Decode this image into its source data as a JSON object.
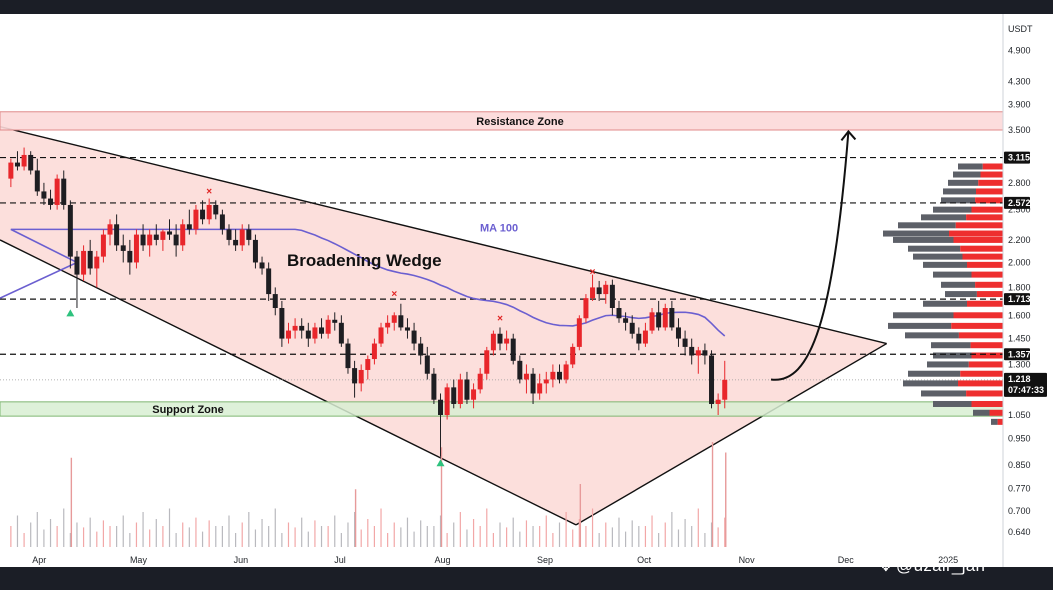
{
  "chart_data": {
    "type": "candlestick",
    "currency_label": "USDT",
    "y_scale": "log",
    "ylim": [
      0.61,
      5.5
    ],
    "y_ticks": [
      "4.900",
      "4.300",
      "3.900",
      "3.500",
      "2.800",
      "2.500",
      "2.200",
      "2.000",
      "1.800",
      "1.600",
      "1.450",
      "1.300",
      "1.050",
      "0.950",
      "0.850",
      "0.770",
      "0.700",
      "0.640"
    ],
    "months": [
      "Apr",
      "May",
      "Jun",
      "Jul",
      "Aug",
      "Sep",
      "Oct",
      "Nov",
      "Dec",
      "2025"
    ],
    "title": "Broadening Wedge",
    "ma_label": "MA 100",
    "resistance_zone": {
      "label": "Resistance Zone",
      "low": 3.5,
      "high": 3.78
    },
    "support_zone": {
      "label": "Support Zone",
      "low": 1.045,
      "high": 1.11
    },
    "key_levels": [
      {
        "value": 3.115,
        "label": "3.115"
      },
      {
        "value": 2.572,
        "label": "2.572"
      },
      {
        "value": 1.713,
        "label": "1.713"
      },
      {
        "value": 1.357,
        "label": "1.357"
      }
    ],
    "current_price": {
      "value": 1.218,
      "label": "1.218",
      "countdown": "07:47:33"
    },
    "wedge": {
      "upper": [
        [
          "Mar 25",
          3.55
        ],
        [
          "Dec 15",
          1.42
        ]
      ],
      "lower": [
        [
          "Mar 25",
          2.2
        ],
        [
          "Sep 12",
          0.66
        ]
      ],
      "apex_line": [
        [
          "Sep 12",
          0.66
        ],
        [
          "Dec 15",
          1.42
        ]
      ]
    },
    "projection": {
      "from": [
        "Nov 10",
        1.22
      ],
      "to": [
        "Dec 1",
        3.45
      ]
    },
    "candles": [
      {
        "t": "Mar 25",
        "o": 2.85,
        "h": 3.1,
        "l": 2.75,
        "c": 3.05
      },
      {
        "t": "Mar 27",
        "o": 3.05,
        "h": 3.2,
        "l": 2.95,
        "c": 3.0
      },
      {
        "t": "Mar 29",
        "o": 3.0,
        "h": 3.25,
        "l": 2.95,
        "c": 3.15
      },
      {
        "t": "Mar 31",
        "o": 3.15,
        "h": 3.2,
        "l": 2.9,
        "c": 2.95
      },
      {
        "t": "Apr 2",
        "o": 2.95,
        "h": 3.1,
        "l": 2.65,
        "c": 2.7
      },
      {
        "t": "Apr 4",
        "o": 2.7,
        "h": 2.8,
        "l": 2.55,
        "c": 2.62
      },
      {
        "t": "Apr 6",
        "o": 2.62,
        "h": 2.72,
        "l": 2.5,
        "c": 2.55
      },
      {
        "t": "Apr 8",
        "o": 2.55,
        "h": 2.9,
        "l": 2.5,
        "c": 2.85
      },
      {
        "t": "Apr 10",
        "o": 2.85,
        "h": 2.95,
        "l": 2.5,
        "c": 2.55
      },
      {
        "t": "Apr 12",
        "o": 2.55,
        "h": 2.6,
        "l": 1.95,
        "c": 2.05
      },
      {
        "t": "Apr 14",
        "o": 2.05,
        "h": 2.1,
        "l": 1.65,
        "c": 1.9
      },
      {
        "t": "Apr 16",
        "o": 1.9,
        "h": 2.15,
        "l": 1.85,
        "c": 2.1
      },
      {
        "t": "Apr 18",
        "o": 2.1,
        "h": 2.2,
        "l": 1.9,
        "c": 1.95
      },
      {
        "t": "Apr 20",
        "o": 1.95,
        "h": 2.1,
        "l": 1.8,
        "c": 2.05
      },
      {
        "t": "Apr 22",
        "o": 2.05,
        "h": 2.3,
        "l": 2.0,
        "c": 2.25
      },
      {
        "t": "Apr 24",
        "o": 2.25,
        "h": 2.4,
        "l": 2.15,
        "c": 2.35
      },
      {
        "t": "Apr 26",
        "o": 2.35,
        "h": 2.45,
        "l": 2.1,
        "c": 2.15
      },
      {
        "t": "Apr 28",
        "o": 2.15,
        "h": 2.25,
        "l": 2.0,
        "c": 2.1
      },
      {
        "t": "Apr 30",
        "o": 2.1,
        "h": 2.2,
        "l": 1.9,
        "c": 2.0
      },
      {
        "t": "May 2",
        "o": 2.0,
        "h": 2.3,
        "l": 1.95,
        "c": 2.25
      },
      {
        "t": "May 4",
        "o": 2.25,
        "h": 2.35,
        "l": 2.1,
        "c": 2.15
      },
      {
        "t": "May 6",
        "o": 2.15,
        "h": 2.3,
        "l": 2.05,
        "c": 2.25
      },
      {
        "t": "May 8",
        "o": 2.25,
        "h": 2.35,
        "l": 2.15,
        "c": 2.2
      },
      {
        "t": "May 10",
        "o": 2.2,
        "h": 2.3,
        "l": 2.1,
        "c": 2.28
      },
      {
        "t": "May 12",
        "o": 2.28,
        "h": 2.4,
        "l": 2.2,
        "c": 2.25
      },
      {
        "t": "May 14",
        "o": 2.25,
        "h": 2.35,
        "l": 2.05,
        "c": 2.15
      },
      {
        "t": "May 16",
        "o": 2.15,
        "h": 2.4,
        "l": 2.1,
        "c": 2.35
      },
      {
        "t": "May 18",
        "o": 2.35,
        "h": 2.5,
        "l": 2.25,
        "c": 2.3
      },
      {
        "t": "May 20",
        "o": 2.3,
        "h": 2.55,
        "l": 2.25,
        "c": 2.5
      },
      {
        "t": "May 22",
        "o": 2.5,
        "h": 2.6,
        "l": 2.35,
        "c": 2.4
      },
      {
        "t": "May 24",
        "o": 2.4,
        "h": 2.62,
        "l": 2.35,
        "c": 2.55
      },
      {
        "t": "May 26",
        "o": 2.55,
        "h": 2.6,
        "l": 2.4,
        "c": 2.45
      },
      {
        "t": "May 28",
        "o": 2.45,
        "h": 2.5,
        "l": 2.25,
        "c": 2.3
      },
      {
        "t": "May 30",
        "o": 2.3,
        "h": 2.35,
        "l": 2.15,
        "c": 2.2
      },
      {
        "t": "Jun 1",
        "o": 2.2,
        "h": 2.3,
        "l": 2.1,
        "c": 2.15
      },
      {
        "t": "Jun 3",
        "o": 2.15,
        "h": 2.35,
        "l": 2.1,
        "c": 2.3
      },
      {
        "t": "Jun 5",
        "o": 2.3,
        "h": 2.35,
        "l": 2.15,
        "c": 2.2
      },
      {
        "t": "Jun 7",
        "o": 2.2,
        "h": 2.25,
        "l": 1.95,
        "c": 2.0
      },
      {
        "t": "Jun 9",
        "o": 2.0,
        "h": 2.05,
        "l": 1.9,
        "c": 1.95
      },
      {
        "t": "Jun 11",
        "o": 1.95,
        "h": 2.0,
        "l": 1.7,
        "c": 1.75
      },
      {
        "t": "Jun 13",
        "o": 1.75,
        "h": 1.8,
        "l": 1.6,
        "c": 1.65
      },
      {
        "t": "Jun 15",
        "o": 1.65,
        "h": 1.7,
        "l": 1.4,
        "c": 1.45
      },
      {
        "t": "Jun 17",
        "o": 1.45,
        "h": 1.55,
        "l": 1.42,
        "c": 1.5
      },
      {
        "t": "Jun 19",
        "o": 1.5,
        "h": 1.58,
        "l": 1.45,
        "c": 1.53
      },
      {
        "t": "Jun 21",
        "o": 1.53,
        "h": 1.58,
        "l": 1.45,
        "c": 1.5
      },
      {
        "t": "Jun 23",
        "o": 1.5,
        "h": 1.55,
        "l": 1.4,
        "c": 1.45
      },
      {
        "t": "Jun 25",
        "o": 1.45,
        "h": 1.55,
        "l": 1.42,
        "c": 1.52
      },
      {
        "t": "Jun 27",
        "o": 1.52,
        "h": 1.58,
        "l": 1.45,
        "c": 1.48
      },
      {
        "t": "Jun 29",
        "o": 1.48,
        "h": 1.6,
        "l": 1.45,
        "c": 1.57
      },
      {
        "t": "Jul 1",
        "o": 1.57,
        "h": 1.62,
        "l": 1.5,
        "c": 1.55
      },
      {
        "t": "Jul 3",
        "o": 1.55,
        "h": 1.6,
        "l": 1.4,
        "c": 1.42
      },
      {
        "t": "Jul 5",
        "o": 1.42,
        "h": 1.45,
        "l": 1.25,
        "c": 1.28
      },
      {
        "t": "Jul 7",
        "o": 1.28,
        "h": 1.32,
        "l": 1.13,
        "c": 1.2
      },
      {
        "t": "Jul 9",
        "o": 1.2,
        "h": 1.3,
        "l": 1.16,
        "c": 1.27
      },
      {
        "t": "Jul 11",
        "o": 1.27,
        "h": 1.35,
        "l": 1.22,
        "c": 1.33
      },
      {
        "t": "Jul 13",
        "o": 1.33,
        "h": 1.45,
        "l": 1.3,
        "c": 1.42
      },
      {
        "t": "Jul 15",
        "o": 1.42,
        "h": 1.55,
        "l": 1.4,
        "c": 1.52
      },
      {
        "t": "Jul 17",
        "o": 1.52,
        "h": 1.6,
        "l": 1.48,
        "c": 1.55
      },
      {
        "t": "Jul 19",
        "o": 1.55,
        "h": 1.62,
        "l": 1.5,
        "c": 1.6
      },
      {
        "t": "Jul 21",
        "o": 1.6,
        "h": 1.68,
        "l": 1.5,
        "c": 1.52
      },
      {
        "t": "Jul 23",
        "o": 1.52,
        "h": 1.58,
        "l": 1.45,
        "c": 1.5
      },
      {
        "t": "Jul 25",
        "o": 1.5,
        "h": 1.55,
        "l": 1.38,
        "c": 1.42
      },
      {
        "t": "Jul 27",
        "o": 1.42,
        "h": 1.46,
        "l": 1.3,
        "c": 1.35
      },
      {
        "t": "Jul 29",
        "o": 1.35,
        "h": 1.4,
        "l": 1.22,
        "c": 1.25
      },
      {
        "t": "Jul 31",
        "o": 1.25,
        "h": 1.28,
        "l": 1.1,
        "c": 1.12
      },
      {
        "t": "Aug 2",
        "o": 1.12,
        "h": 1.15,
        "l": 0.88,
        "c": 1.05
      },
      {
        "t": "Aug 4",
        "o": 1.05,
        "h": 1.2,
        "l": 1.03,
        "c": 1.18
      },
      {
        "t": "Aug 6",
        "o": 1.18,
        "h": 1.22,
        "l": 1.08,
        "c": 1.1
      },
      {
        "t": "Aug 8",
        "o": 1.1,
        "h": 1.25,
        "l": 1.08,
        "c": 1.22
      },
      {
        "t": "Aug 10",
        "o": 1.22,
        "h": 1.26,
        "l": 1.1,
        "c": 1.12
      },
      {
        "t": "Aug 12",
        "o": 1.12,
        "h": 1.2,
        "l": 1.08,
        "c": 1.17
      },
      {
        "t": "Aug 14",
        "o": 1.17,
        "h": 1.28,
        "l": 1.15,
        "c": 1.25
      },
      {
        "t": "Aug 16",
        "o": 1.25,
        "h": 1.4,
        "l": 1.22,
        "c": 1.38
      },
      {
        "t": "Aug 18",
        "o": 1.38,
        "h": 1.5,
        "l": 1.35,
        "c": 1.48
      },
      {
        "t": "Aug 20",
        "o": 1.48,
        "h": 1.52,
        "l": 1.38,
        "c": 1.42
      },
      {
        "t": "Aug 22",
        "o": 1.42,
        "h": 1.5,
        "l": 1.38,
        "c": 1.45
      },
      {
        "t": "Aug 24",
        "o": 1.45,
        "h": 1.48,
        "l": 1.3,
        "c": 1.32
      },
      {
        "t": "Aug 26",
        "o": 1.32,
        "h": 1.35,
        "l": 1.2,
        "c": 1.22
      },
      {
        "t": "Aug 28",
        "o": 1.22,
        "h": 1.3,
        "l": 1.15,
        "c": 1.25
      },
      {
        "t": "Aug 30",
        "o": 1.25,
        "h": 1.28,
        "l": 1.1,
        "c": 1.15
      },
      {
        "t": "Sep 1",
        "o": 1.15,
        "h": 1.25,
        "l": 1.12,
        "c": 1.2
      },
      {
        "t": "Sep 3",
        "o": 1.2,
        "h": 1.26,
        "l": 1.15,
        "c": 1.22
      },
      {
        "t": "Sep 5",
        "o": 1.22,
        "h": 1.3,
        "l": 1.18,
        "c": 1.26
      },
      {
        "t": "Sep 7",
        "o": 1.26,
        "h": 1.3,
        "l": 1.2,
        "c": 1.22
      },
      {
        "t": "Sep 9",
        "o": 1.22,
        "h": 1.32,
        "l": 1.2,
        "c": 1.3
      },
      {
        "t": "Sep 11",
        "o": 1.3,
        "h": 1.42,
        "l": 1.28,
        "c": 1.4
      },
      {
        "t": "Sep 13",
        "o": 1.4,
        "h": 1.6,
        "l": 1.38,
        "c": 1.58
      },
      {
        "t": "Sep 15",
        "o": 1.58,
        "h": 1.75,
        "l": 1.55,
        "c": 1.72
      },
      {
        "t": "Sep 17",
        "o": 1.72,
        "h": 1.9,
        "l": 1.7,
        "c": 1.8
      },
      {
        "t": "Sep 19",
        "o": 1.8,
        "h": 1.85,
        "l": 1.7,
        "c": 1.75
      },
      {
        "t": "Sep 21",
        "o": 1.75,
        "h": 1.85,
        "l": 1.68,
        "c": 1.82
      },
      {
        "t": "Sep 23",
        "o": 1.82,
        "h": 1.86,
        "l": 1.6,
        "c": 1.65
      },
      {
        "t": "Sep 25",
        "o": 1.65,
        "h": 1.7,
        "l": 1.55,
        "c": 1.58
      },
      {
        "t": "Sep 27",
        "o": 1.58,
        "h": 1.62,
        "l": 1.5,
        "c": 1.55
      },
      {
        "t": "Sep 29",
        "o": 1.55,
        "h": 1.6,
        "l": 1.45,
        "c": 1.48
      },
      {
        "t": "Oct 1",
        "o": 1.48,
        "h": 1.52,
        "l": 1.38,
        "c": 1.42
      },
      {
        "t": "Oct 3",
        "o": 1.42,
        "h": 1.55,
        "l": 1.4,
        "c": 1.5
      },
      {
        "t": "Oct 5",
        "o": 1.5,
        "h": 1.65,
        "l": 1.48,
        "c": 1.62
      },
      {
        "t": "Oct 7",
        "o": 1.62,
        "h": 1.7,
        "l": 1.5,
        "c": 1.52
      },
      {
        "t": "Oct 9",
        "o": 1.52,
        "h": 1.68,
        "l": 1.5,
        "c": 1.65
      },
      {
        "t": "Oct 11",
        "o": 1.65,
        "h": 1.7,
        "l": 1.5,
        "c": 1.52
      },
      {
        "t": "Oct 13",
        "o": 1.52,
        "h": 1.58,
        "l": 1.4,
        "c": 1.45
      },
      {
        "t": "Oct 15",
        "o": 1.45,
        "h": 1.5,
        "l": 1.35,
        "c": 1.4
      },
      {
        "t": "Oct 17",
        "o": 1.4,
        "h": 1.45,
        "l": 1.3,
        "c": 1.35
      },
      {
        "t": "Oct 19",
        "o": 1.35,
        "h": 1.4,
        "l": 1.25,
        "c": 1.38
      },
      {
        "t": "Oct 21",
        "o": 1.38,
        "h": 1.42,
        "l": 1.3,
        "c": 1.35
      },
      {
        "t": "Oct 23",
        "o": 1.35,
        "h": 1.38,
        "l": 1.08,
        "c": 1.1
      },
      {
        "t": "Oct 25",
        "o": 1.1,
        "h": 1.15,
        "l": 1.05,
        "c": 1.12
      },
      {
        "t": "Oct 27",
        "o": 1.12,
        "h": 1.32,
        "l": 1.08,
        "c": 1.218
      }
    ],
    "volume_spikes": [
      {
        "t": "Apr 12",
        "v": 0.85
      },
      {
        "t": "Jul 7",
        "v": 0.55
      },
      {
        "t": "Aug 2",
        "v": 0.95
      },
      {
        "t": "Sep 13",
        "v": 0.6
      },
      {
        "t": "Oct 23",
        "v": 1.0
      },
      {
        "t": "Oct 27",
        "v": 0.9
      }
    ]
  },
  "watermark": "@uzair_jan",
  "colors": {
    "up": "#e8262b",
    "down": "#1e1e22",
    "wedge_fill": "#fbd9d6",
    "resistance_fill": "#fcd9d9",
    "support_fill": "#d8eed2",
    "ma": "#6b5fd0"
  }
}
